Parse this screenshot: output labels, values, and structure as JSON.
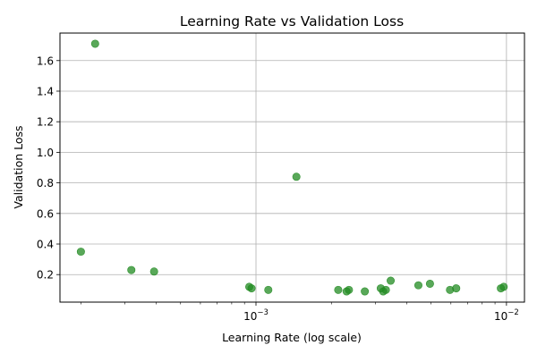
{
  "chart_data": {
    "type": "scatter",
    "title": "Learning Rate vs Validation Loss",
    "xlabel": "Learning Rate (log scale)",
    "ylabel": "Validation Loss",
    "xscale": "log",
    "xlim": [
      0.000165,
      0.0118
    ],
    "ylim": [
      0.02,
      1.78
    ],
    "grid": true,
    "marker_color": "#228B22",
    "x_ticks": [
      {
        "value": 0.001,
        "base": "10",
        "exp": "−3"
      },
      {
        "value": 0.01,
        "base": "10",
        "exp": "−2"
      }
    ],
    "y_ticks": [
      {
        "value": 0.2,
        "label": "0.2"
      },
      {
        "value": 0.4,
        "label": "0.4"
      },
      {
        "value": 0.6,
        "label": "0.6"
      },
      {
        "value": 0.8,
        "label": "0.8"
      },
      {
        "value": 1.0,
        "label": "1.0"
      },
      {
        "value": 1.2,
        "label": "1.2"
      },
      {
        "value": 1.4,
        "label": "1.4"
      },
      {
        "value": 1.6,
        "label": "1.6"
      }
    ],
    "points": [
      {
        "x": 0.000228,
        "y": 1.71
      },
      {
        "x": 0.0002,
        "y": 0.35
      },
      {
        "x": 0.000318,
        "y": 0.23
      },
      {
        "x": 0.000392,
        "y": 0.22
      },
      {
        "x": 0.00094,
        "y": 0.12
      },
      {
        "x": 0.00096,
        "y": 0.11
      },
      {
        "x": 0.00112,
        "y": 0.1
      },
      {
        "x": 0.00145,
        "y": 0.84
      },
      {
        "x": 0.00213,
        "y": 0.1
      },
      {
        "x": 0.0023,
        "y": 0.09
      },
      {
        "x": 0.00235,
        "y": 0.1
      },
      {
        "x": 0.00272,
        "y": 0.09
      },
      {
        "x": 0.00315,
        "y": 0.11
      },
      {
        "x": 0.00322,
        "y": 0.09
      },
      {
        "x": 0.0033,
        "y": 0.1
      },
      {
        "x": 0.00345,
        "y": 0.16
      },
      {
        "x": 0.00445,
        "y": 0.13
      },
      {
        "x": 0.00495,
        "y": 0.14
      },
      {
        "x": 0.00595,
        "y": 0.1
      },
      {
        "x": 0.0063,
        "y": 0.11
      },
      {
        "x": 0.0095,
        "y": 0.11
      },
      {
        "x": 0.00975,
        "y": 0.12
      }
    ]
  }
}
